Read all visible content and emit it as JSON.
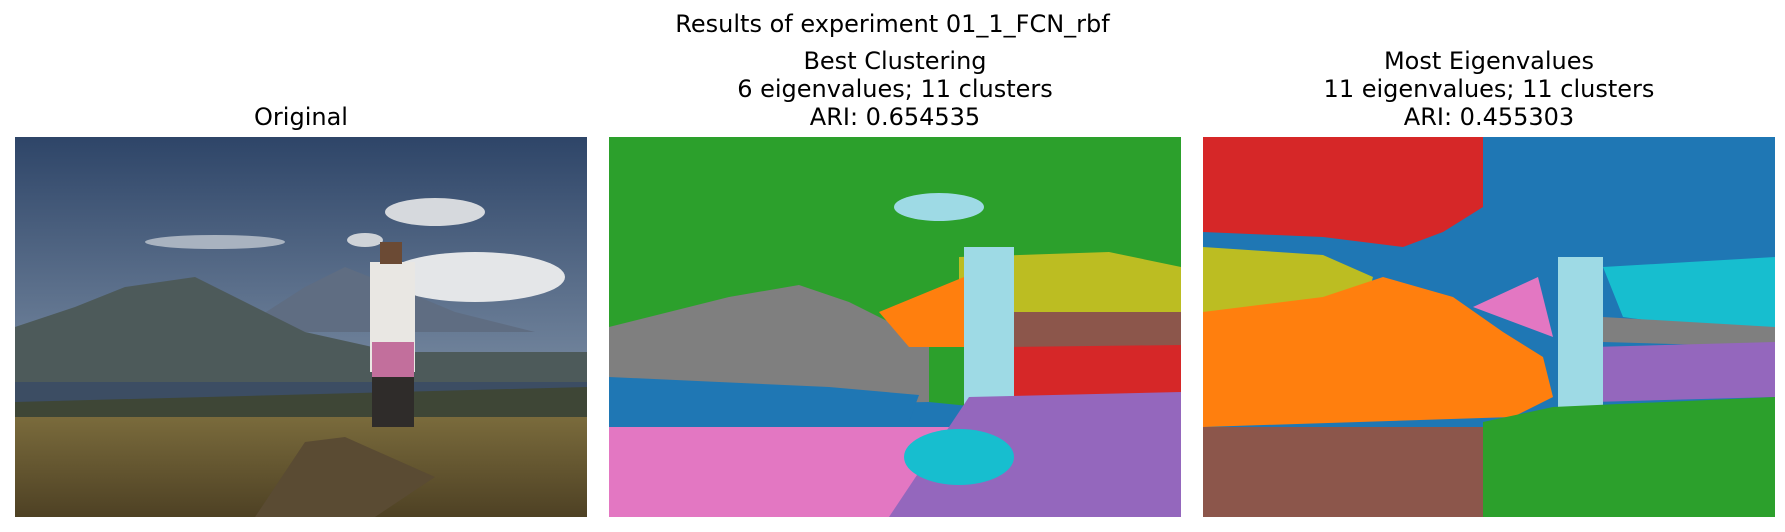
{
  "figure": {
    "suptitle": "Results of experiment 01_1_FCN_rbf"
  },
  "panels": [
    {
      "id": "original",
      "title_lines": [
        "Original"
      ],
      "content": "photograph"
    },
    {
      "id": "best-clustering",
      "title_lines": [
        "Best Clustering",
        "6 eigenvalues; 11 clusters",
        "ARI: 0.654535"
      ]
    },
    {
      "id": "most-eigenvalues",
      "title_lines": [
        "Most Eigenvalues",
        "11 eigenvalues; 11 clusters",
        "ARI: 0.455303"
      ]
    }
  ],
  "cluster_colors": {
    "green": "#2ca02c",
    "blue": "#1f77b4",
    "light_blue": "#9edae5",
    "gray": "#7f7f7f",
    "orange": "#ff7f0e",
    "olive": "#bcbd22",
    "brown": "#8c564b",
    "red": "#d62728",
    "pink": "#e377c2",
    "purple": "#9467bd",
    "cyan": "#17becf"
  }
}
